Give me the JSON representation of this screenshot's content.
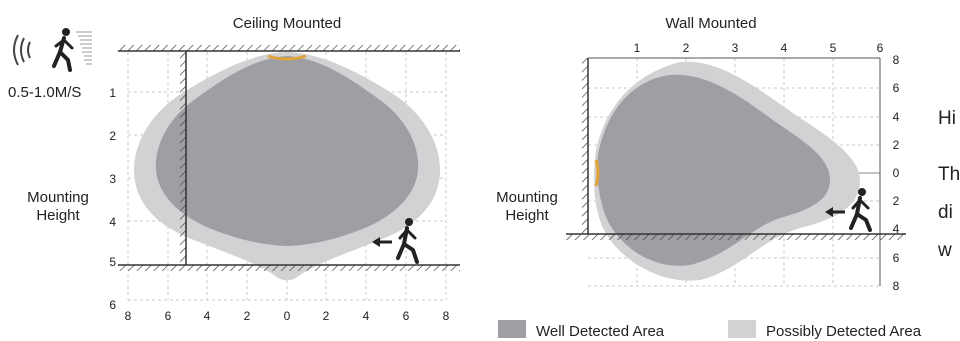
{
  "ceiling": {
    "title": "Ceiling Mounted",
    "speed": "0.5-1.0M/S",
    "mounting_label_1": "Mounting",
    "mounting_label_2": "Height",
    "y_ticks": [
      "1",
      "2",
      "3",
      "4",
      "5",
      "6"
    ],
    "x_ticks": [
      "8",
      "6",
      "4",
      "2",
      "0",
      "2",
      "4",
      "6",
      "8"
    ]
  },
  "wall": {
    "title": "Wall Mounted",
    "mounting_label_1": "Mounting",
    "mounting_label_2": "Height",
    "top_ticks": [
      "1",
      "2",
      "3",
      "4",
      "5",
      "6"
    ],
    "right_ticks": [
      "8",
      "6",
      "4",
      "2",
      "0",
      "2",
      "4",
      "6",
      "8"
    ]
  },
  "side_text": {
    "line1": "Hi",
    "line2": "Th",
    "line3": "di",
    "line4": "w"
  },
  "legend": {
    "well": "Well Detected Area",
    "possibly": "Possibly Detected Area"
  },
  "colors": {
    "well": "#9e9ea3",
    "possibly": "#d2d2d4",
    "sensor": "#e0a43a",
    "grid": "#c8c8c8",
    "line": "#333333"
  },
  "icons": [
    "walking-person-icon",
    "motion-wave-icon",
    "arrow-left-icon"
  ]
}
